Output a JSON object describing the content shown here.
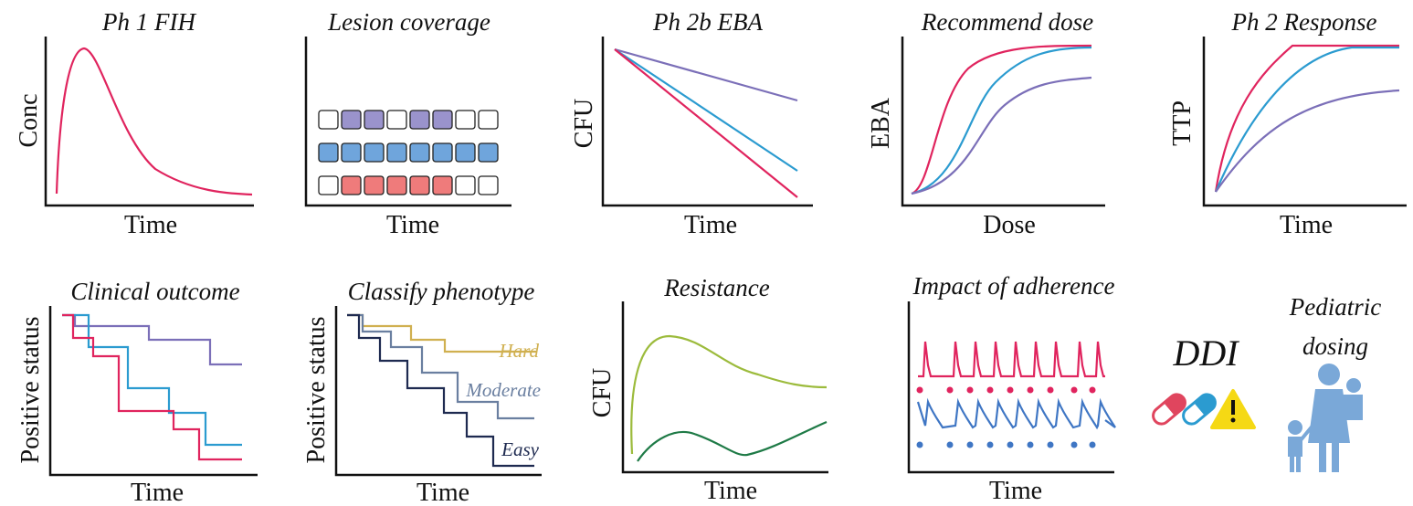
{
  "panels": [
    {
      "title": "Ph 1 FIH",
      "y_label": "Conc",
      "x_label": "Time"
    },
    {
      "title": "Lesion coverage",
      "x_label": "Time"
    },
    {
      "title": "Ph 2b EBA",
      "y_label": "CFU",
      "x_label": "Time"
    },
    {
      "title": "Recommend dose",
      "y_label": "EBA",
      "x_label": "Dose"
    },
    {
      "title": "Ph 2 Response",
      "y_label": "TTP",
      "x_label": "Time"
    },
    {
      "title": "Clinical outcome",
      "y_label": "Positive status",
      "x_label": "Time"
    },
    {
      "title": "Classify phenotype",
      "y_label": "Positive status",
      "x_label": "Time",
      "labels": [
        "Hard",
        "Moderate",
        "Easy"
      ]
    },
    {
      "title": "Resistance",
      "y_label": "CFU",
      "x_label": "Time"
    },
    {
      "title": "Impact of adherence",
      "x_label": "Time"
    }
  ],
  "ddi": "DDI",
  "pediatric": [
    "Pediatric",
    "dosing"
  ]
}
